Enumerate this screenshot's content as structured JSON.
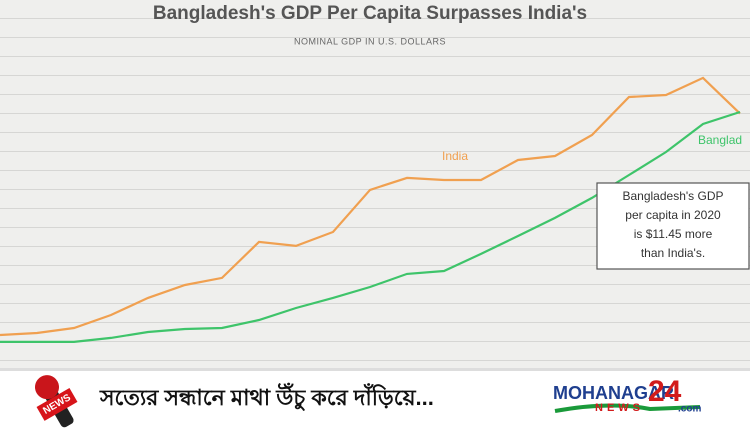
{
  "chart_data": {
    "type": "line",
    "title": "Bangladesh's GDP Per Capita Surpasses India's",
    "subtitle": "NOMINAL GDP IN U.S. DOLLARS",
    "categories": [
      null,
      null,
      null,
      null,
      null,
      null,
      null,
      null,
      null,
      null,
      null,
      null,
      null,
      null,
      null,
      null,
      null,
      null,
      null,
      null,
      null
    ],
    "series": [
      {
        "name": "India",
        "color": "#f0a050",
        "values": [
          439,
          452,
          486,
          574,
          689,
          776,
          824,
          1067,
          1040,
          1134,
          1418,
          1499,
          1485,
          1485,
          1620,
          1647,
          1789,
          2045,
          2059,
          2174,
          1933
        ]
      },
      {
        "name": "Banglad",
        "color": "#3ec46a",
        "values": [
          392,
          392,
          392,
          419,
          459,
          479,
          486,
          540,
          621,
          689,
          763,
          851,
          871,
          986,
          1107,
          1229,
          1364,
          1519,
          1674,
          1863,
          1944
        ]
      }
    ],
    "ylim": [
      0,
      2700
    ],
    "annotation": {
      "lines": [
        "Bangladesh's GDP",
        "per capita in 2020",
        "is $11.45 more",
        "than India's."
      ]
    }
  },
  "banner": {
    "mic_label": "NEWS",
    "slogan": "সত্যের সন্ধানে মাথা উঁচু করে দাঁড়িয়ে...",
    "logo_name": "MOHANAGAR",
    "logo_number": "24",
    "logo_news": "NEWS",
    "logo_domain": ".com"
  }
}
